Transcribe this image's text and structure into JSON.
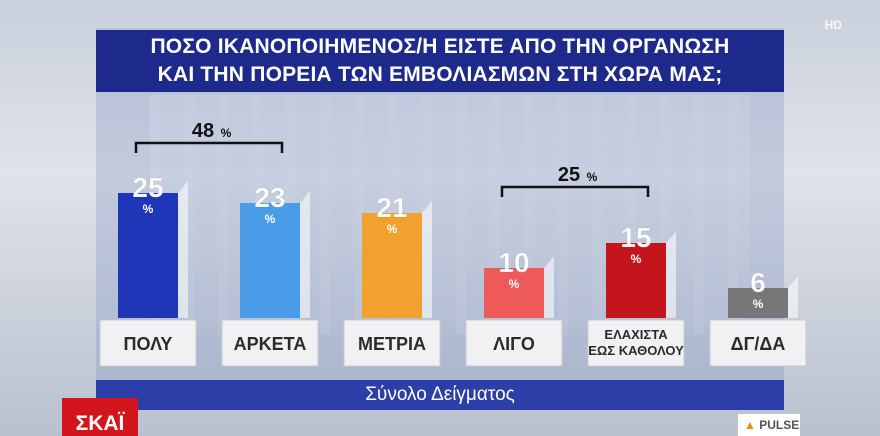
{
  "title_line1": "ΠΟΣΟ ΙΚΑΝΟΠΟΙΗΜΕΝΟΣ/Η ΕΙΣΤΕ ΑΠΟ ΤΗΝ ΟΡΓΑΝΩΣΗ",
  "title_line2": "ΚΑΙ ΤΗΝ ΠΟΡΕΙΑ ΤΩΝ ΕΜΒΟΛΙΑΣΜΩΝ ΣΤΗ ΧΩΡΑ ΜΑΣ;",
  "hd_label": "HD",
  "footer_label": "Σύνολο Δείγματος",
  "logo_left": "ΣΚΑΪ",
  "logo_right": "PULSE",
  "chart_data": {
    "type": "bar",
    "categories": [
      "ΠΟΛΥ",
      "ΑΡΚΕΤΑ",
      "ΜΕΤΡΙΑ",
      "ΛΙΓΟ",
      "ΕΛΑΧΙΣΤΑ ΕΩΣ ΚΑΘΟΛΟΥ",
      "ΔΓ/ΔΑ"
    ],
    "values": [
      25,
      23,
      21,
      10,
      15,
      6
    ],
    "unit": "%",
    "colors": [
      "#1f36b8",
      "#4a9be8",
      "#f2a12e",
      "#ee5a5a",
      "#c3151b",
      "#777777"
    ],
    "label_colors": [
      "#ffffff",
      "#ffffff",
      "#ffffff",
      "#ffffff",
      "#ffffff",
      "#ffffff"
    ],
    "brackets": [
      {
        "from": 0,
        "to": 1,
        "value": 48,
        "unit": "%"
      },
      {
        "from": 3,
        "to": 4,
        "value": 25,
        "unit": "%"
      }
    ],
    "ylim": [
      0,
      30
    ]
  }
}
